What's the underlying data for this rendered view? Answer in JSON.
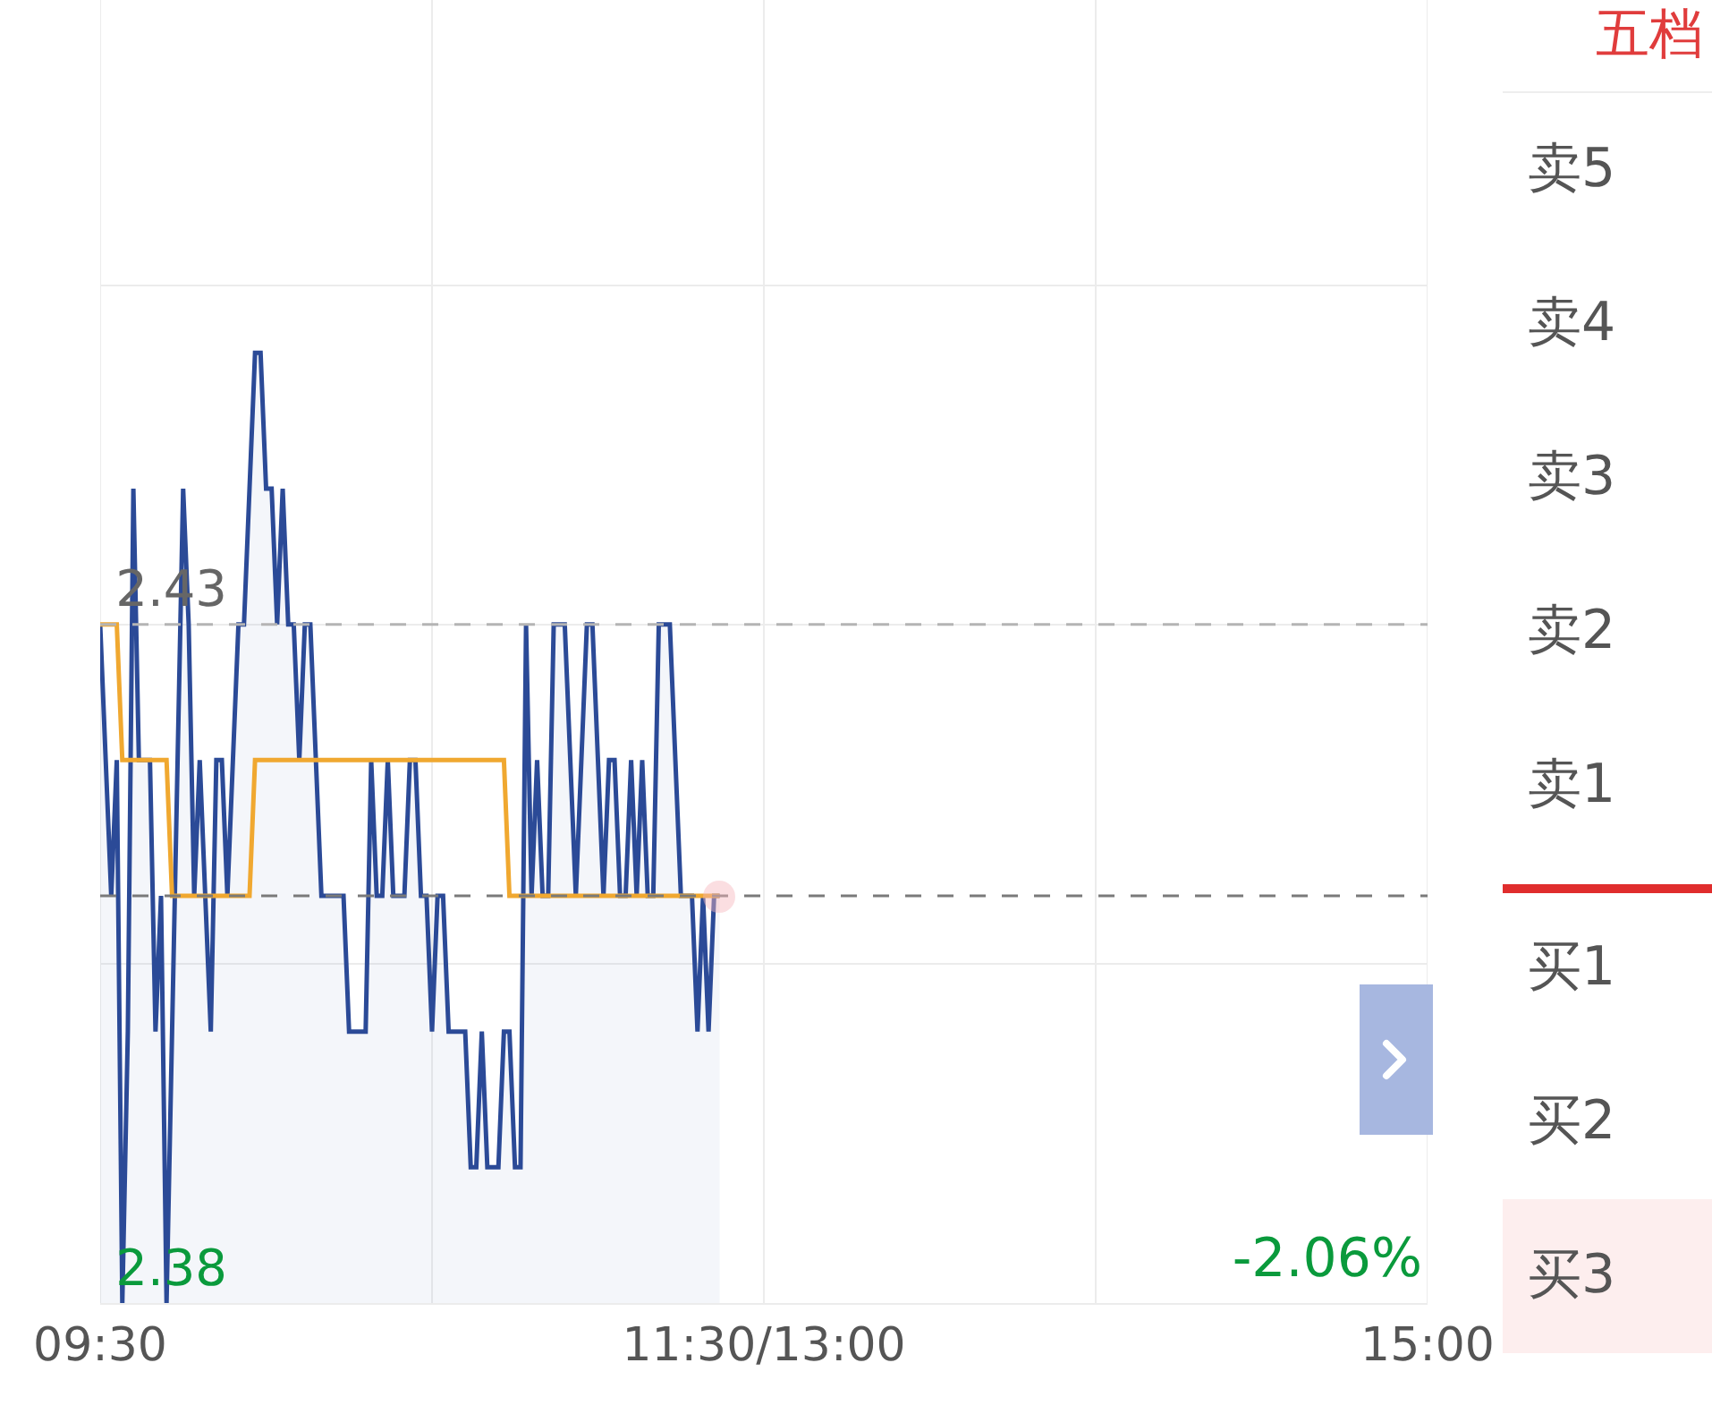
{
  "chart_data": {
    "type": "line",
    "categories": [
      "09:30",
      null,
      null,
      null,
      null,
      null,
      null,
      null,
      null,
      null,
      null,
      null,
      null,
      null,
      null,
      null,
      null,
      null,
      null,
      null,
      null,
      null,
      null,
      null,
      null,
      null,
      null,
      null,
      null,
      null,
      null,
      null,
      null,
      null,
      null,
      null,
      null,
      null,
      null,
      null,
      null,
      null,
      null,
      null,
      null,
      null,
      null,
      null,
      null,
      null,
      null,
      null,
      null,
      null,
      null,
      null,
      null,
      null,
      null,
      null,
      null,
      null,
      null,
      null,
      null,
      null,
      null,
      null,
      null,
      null,
      null,
      null,
      null,
      null,
      null,
      null,
      null,
      null,
      null,
      null,
      null,
      null,
      null,
      null,
      null,
      null,
      null,
      null,
      null,
      null,
      null,
      null,
      null,
      null,
      null,
      null,
      null,
      null,
      null,
      null,
      null,
      null,
      null,
      null,
      null,
      null,
      null,
      null,
      null,
      null,
      null,
      null,
      null,
      null,
      null,
      null,
      null,
      null,
      null,
      null,
      "11:30/13:00",
      null,
      null,
      null,
      null,
      null,
      null,
      null,
      null,
      null,
      null,
      null,
      null,
      null,
      null,
      null,
      null,
      null,
      null,
      null,
      null,
      null,
      null,
      null,
      null,
      null,
      null,
      null,
      null,
      null,
      null,
      null,
      null,
      null,
      null,
      null,
      null,
      null,
      null,
      null,
      null,
      null,
      null,
      null,
      null,
      null,
      null,
      null,
      null,
      null,
      null,
      null,
      null,
      null,
      null,
      null,
      null,
      null,
      null,
      null,
      null,
      null,
      null,
      null,
      null,
      null,
      null,
      null,
      null,
      null,
      null,
      null,
      null,
      null,
      null,
      null,
      null,
      null,
      null,
      null,
      null,
      null,
      null,
      null,
      null,
      null,
      null,
      null,
      null,
      null,
      null,
      null,
      null,
      null,
      null,
      null,
      null,
      null,
      null,
      null,
      null,
      null,
      null,
      null,
      null,
      null,
      null,
      null,
      null,
      null,
      null,
      null,
      null,
      null,
      null,
      null,
      null,
      null,
      null,
      null,
      "15:00"
    ],
    "ylim": [
      2.38,
      2.476
    ],
    "yticks": [
      {
        "value": 2.38,
        "label": "2.38"
      },
      {
        "value": 2.405,
        "label": null
      },
      {
        "value": 2.43,
        "label": "2.43"
      },
      {
        "value": 2.455,
        "label": null
      }
    ],
    "grid": true,
    "ref_lines": [
      {
        "axis": "y",
        "value": 2.43,
        "color": "#b4b4b4",
        "line_style": "dashed"
      },
      {
        "axis": "y",
        "value": 2.41,
        "color": "#7a7a7a",
        "line_style": "dashed"
      }
    ],
    "series": [
      {
        "type": "area",
        "color": "#2b4a97",
        "values": [
          2.43,
          2.42,
          2.41,
          2.42,
          2.38,
          2.4,
          2.44,
          2.42,
          2.42,
          2.42,
          2.4,
          2.41,
          2.38,
          2.4,
          2.42,
          2.44,
          2.43,
          2.41,
          2.42,
          2.41,
          2.4,
          2.42,
          2.42,
          2.41,
          2.42,
          2.43,
          2.43,
          2.44,
          2.45,
          2.45,
          2.44,
          2.44,
          2.43,
          2.44,
          2.43,
          2.43,
          2.42,
          2.43,
          2.43,
          2.42,
          2.41,
          2.41,
          2.41,
          2.41,
          2.41,
          2.4,
          2.4,
          2.4,
          2.4,
          2.42,
          2.41,
          2.41,
          2.42,
          2.41,
          2.41,
          2.41,
          2.42,
          2.42,
          2.41,
          2.41,
          2.4,
          2.41,
          2.41,
          2.4,
          2.4,
          2.4,
          2.4,
          2.39,
          2.39,
          2.4,
          2.39,
          2.39,
          2.39,
          2.4,
          2.4,
          2.39,
          2.39,
          2.43,
          2.41,
          2.42,
          2.41,
          2.41,
          2.43,
          2.43,
          2.43,
          2.42,
          2.41,
          2.42,
          2.43,
          2.43,
          2.42,
          2.41,
          2.42,
          2.42,
          2.41,
          2.41,
          2.42,
          2.41,
          2.42,
          2.41,
          2.41,
          2.43,
          2.43,
          2.43,
          2.42,
          2.41,
          2.41,
          2.41,
          2.4,
          2.41,
          2.4,
          2.41,
          2.41,
          null,
          null,
          null,
          null,
          null,
          null,
          null,
          null,
          null,
          null,
          null,
          null,
          null,
          null,
          null,
          null,
          null,
          null,
          null,
          null,
          null,
          null,
          null,
          null,
          null,
          null,
          null,
          null,
          null,
          null,
          null,
          null,
          null,
          null,
          null,
          null,
          null,
          null,
          null,
          null,
          null,
          null,
          null,
          null,
          null,
          null,
          null,
          null,
          null,
          null,
          null,
          null,
          null,
          null,
          null,
          null,
          null,
          null,
          null,
          null,
          null,
          null,
          null,
          null,
          null,
          null,
          null,
          null,
          null,
          null,
          null,
          null,
          null,
          null,
          null,
          null,
          null,
          null,
          null,
          null,
          null,
          null,
          null,
          null,
          null,
          null,
          null,
          null,
          null,
          null,
          null,
          null,
          null,
          null,
          null,
          null,
          null,
          null,
          null,
          null,
          null,
          null,
          null,
          null,
          null,
          null,
          null,
          null,
          null,
          null,
          null,
          null,
          null,
          null,
          null,
          null,
          null,
          null,
          null,
          null,
          null,
          null,
          null,
          null,
          null,
          null,
          null,
          null
        ]
      },
      {
        "color": "#f0a830",
        "values": [
          2.43,
          2.43,
          2.43,
          2.43,
          2.42,
          2.42,
          2.42,
          2.42,
          2.42,
          2.42,
          2.42,
          2.42,
          2.42,
          2.41,
          2.41,
          2.41,
          2.41,
          2.41,
          2.41,
          2.41,
          2.41,
          2.41,
          2.41,
          2.41,
          2.41,
          2.41,
          2.41,
          2.41,
          2.42,
          2.42,
          2.42,
          2.42,
          2.42,
          2.42,
          2.42,
          2.42,
          2.42,
          2.42,
          2.42,
          2.42,
          2.42,
          2.42,
          2.42,
          2.42,
          2.42,
          2.42,
          2.42,
          2.42,
          2.42,
          2.42,
          2.42,
          2.42,
          2.42,
          2.42,
          2.42,
          2.42,
          2.42,
          2.42,
          2.42,
          2.42,
          2.42,
          2.42,
          2.42,
          2.42,
          2.42,
          2.42,
          2.42,
          2.42,
          2.42,
          2.42,
          2.42,
          2.42,
          2.42,
          2.42,
          2.41,
          2.41,
          2.41,
          2.41,
          2.41,
          2.41,
          2.41,
          2.41,
          2.41,
          2.41,
          2.41,
          2.41,
          2.41,
          2.41,
          2.41,
          2.41,
          2.41,
          2.41,
          2.41,
          2.41,
          2.41,
          2.41,
          2.41,
          2.41,
          2.41,
          2.41,
          2.41,
          2.41,
          2.41,
          2.41,
          2.41,
          2.41,
          2.41,
          2.41,
          2.41,
          2.41,
          2.41,
          2.41,
          2.41,
          null,
          null,
          null,
          null,
          null,
          null,
          null,
          null,
          null,
          null,
          null,
          null,
          null,
          null,
          null,
          null,
          null,
          null,
          null,
          null,
          null,
          null,
          null,
          null,
          null,
          null,
          null,
          null,
          null,
          null,
          null,
          null,
          null,
          null,
          null,
          null,
          null,
          null,
          null,
          null,
          null,
          null,
          null,
          null,
          null,
          null,
          null,
          null,
          null,
          null,
          null,
          null,
          null,
          null,
          null,
          null,
          null,
          null,
          null,
          null,
          null,
          null,
          null,
          null,
          null,
          null,
          null,
          null,
          null,
          null,
          null,
          null,
          null,
          null,
          null,
          null,
          null,
          null,
          null,
          null,
          null,
          null,
          null,
          null,
          null,
          null,
          null,
          null,
          null,
          null,
          null,
          null,
          null,
          null,
          null,
          null,
          null,
          null,
          null,
          null,
          null,
          null,
          null,
          null,
          null,
          null,
          null,
          null,
          null,
          null,
          null,
          null,
          null,
          null,
          null,
          null,
          null,
          null,
          null,
          null,
          null,
          null,
          null,
          null,
          null,
          null,
          null,
          null
        ]
      }
    ],
    "annotations": [
      "-2.06%",
      "五档",
      "卖5",
      "卖4",
      "卖3",
      "卖2",
      "卖1",
      "买1",
      "买2",
      "买3"
    ]
  }
}
